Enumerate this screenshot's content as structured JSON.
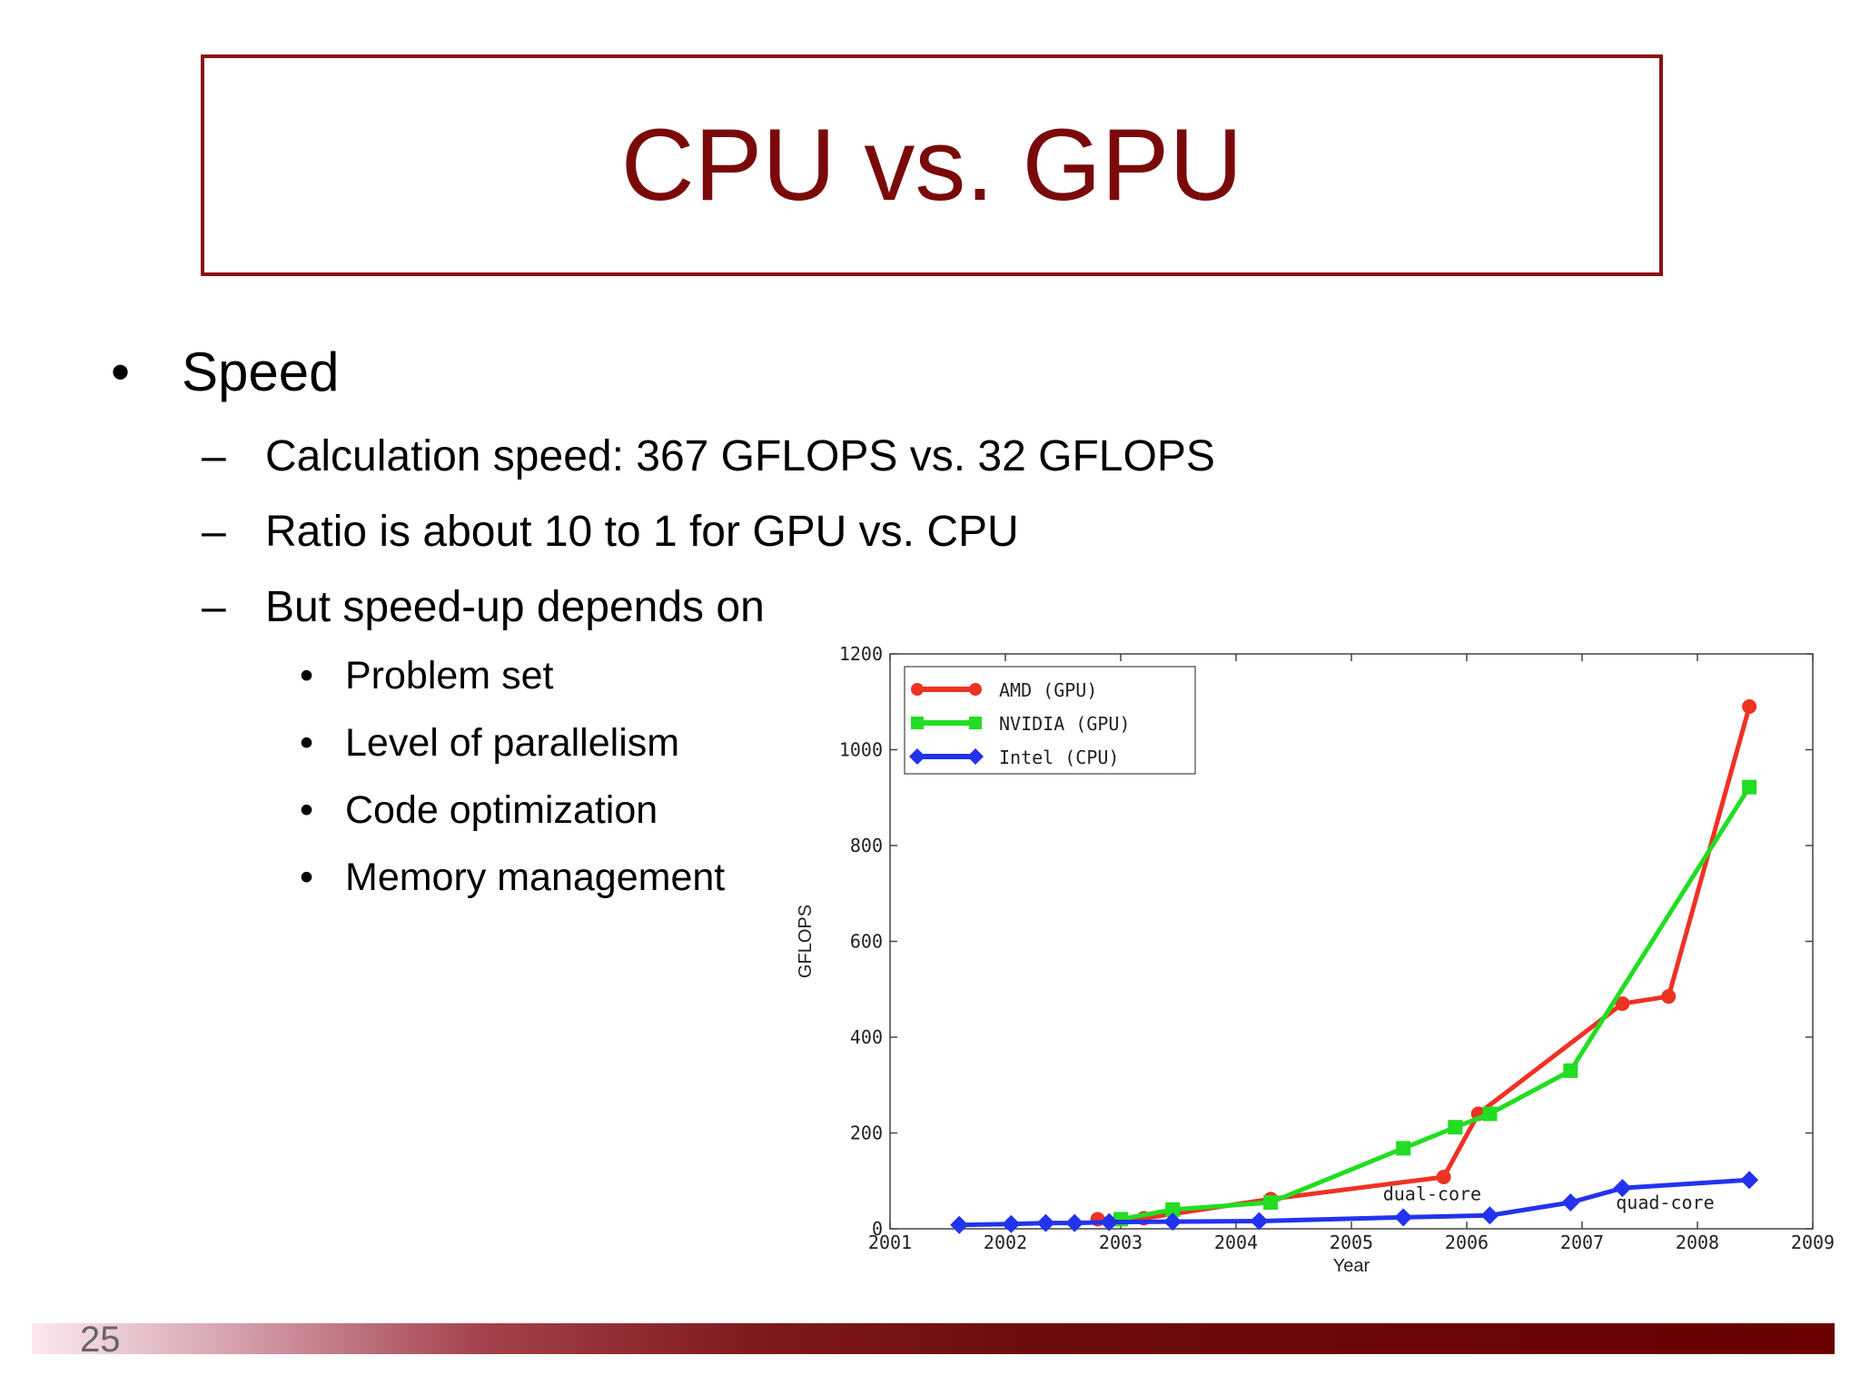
{
  "slide": {
    "title": "CPU vs. GPU",
    "page_number": "25",
    "bullets": {
      "l1_marker": "•",
      "l2_marker": "–",
      "l3_marker": "•",
      "speed": "Speed",
      "calc": "Calculation speed: 367 GFLOPS vs. 32 GFLOPS",
      "ratio": "Ratio is about 10 to 1 for GPU vs. CPU",
      "depends": "But speed-up depends on",
      "sub": [
        "Problem set",
        "Level of parallelism",
        "Code optimization",
        "Memory management"
      ]
    }
  },
  "chart_data": {
    "type": "line",
    "xlabel": "Year",
    "ylabel": "GFLOPS",
    "xlim": [
      2001,
      2009
    ],
    "ylim": [
      0,
      1200
    ],
    "xticks": [
      2001,
      2002,
      2003,
      2004,
      2005,
      2006,
      2007,
      2008,
      2009
    ],
    "yticks": [
      0,
      200,
      400,
      600,
      800,
      1000,
      1200
    ],
    "grid": false,
    "legend_position": "top-left",
    "series": [
      {
        "name": "AMD (GPU)",
        "color": "#ee3224",
        "marker": "circle",
        "points": [
          [
            2002.8,
            20
          ],
          [
            2003.2,
            22
          ],
          [
            2004.3,
            62
          ],
          [
            2005.8,
            108
          ],
          [
            2006.1,
            240
          ],
          [
            2007.35,
            470
          ],
          [
            2007.75,
            485
          ],
          [
            2008.45,
            1090
          ]
        ]
      },
      {
        "name": "NVIDIA (GPU)",
        "color": "#22dd22",
        "marker": "square",
        "points": [
          [
            2003.0,
            20
          ],
          [
            2003.45,
            40
          ],
          [
            2004.3,
            55
          ],
          [
            2005.45,
            168
          ],
          [
            2005.9,
            212
          ],
          [
            2006.2,
            240
          ],
          [
            2006.9,
            330
          ],
          [
            2008.45,
            922
          ]
        ]
      },
      {
        "name": "Intel (CPU)",
        "color": "#2233ee",
        "marker": "diamond",
        "points": [
          [
            2001.6,
            8
          ],
          [
            2002.05,
            10
          ],
          [
            2002.35,
            12
          ],
          [
            2002.6,
            12
          ],
          [
            2002.9,
            14
          ],
          [
            2003.45,
            15
          ],
          [
            2004.2,
            16
          ],
          [
            2005.45,
            24
          ],
          [
            2006.2,
            28
          ],
          [
            2006.9,
            55
          ],
          [
            2007.35,
            85
          ],
          [
            2008.45,
            102
          ]
        ]
      }
    ],
    "annotations": [
      {
        "text": "dual-core",
        "x": 2005.7,
        "y": 60
      },
      {
        "text": "quad-core",
        "x": 2007.72,
        "y": 42
      }
    ]
  }
}
